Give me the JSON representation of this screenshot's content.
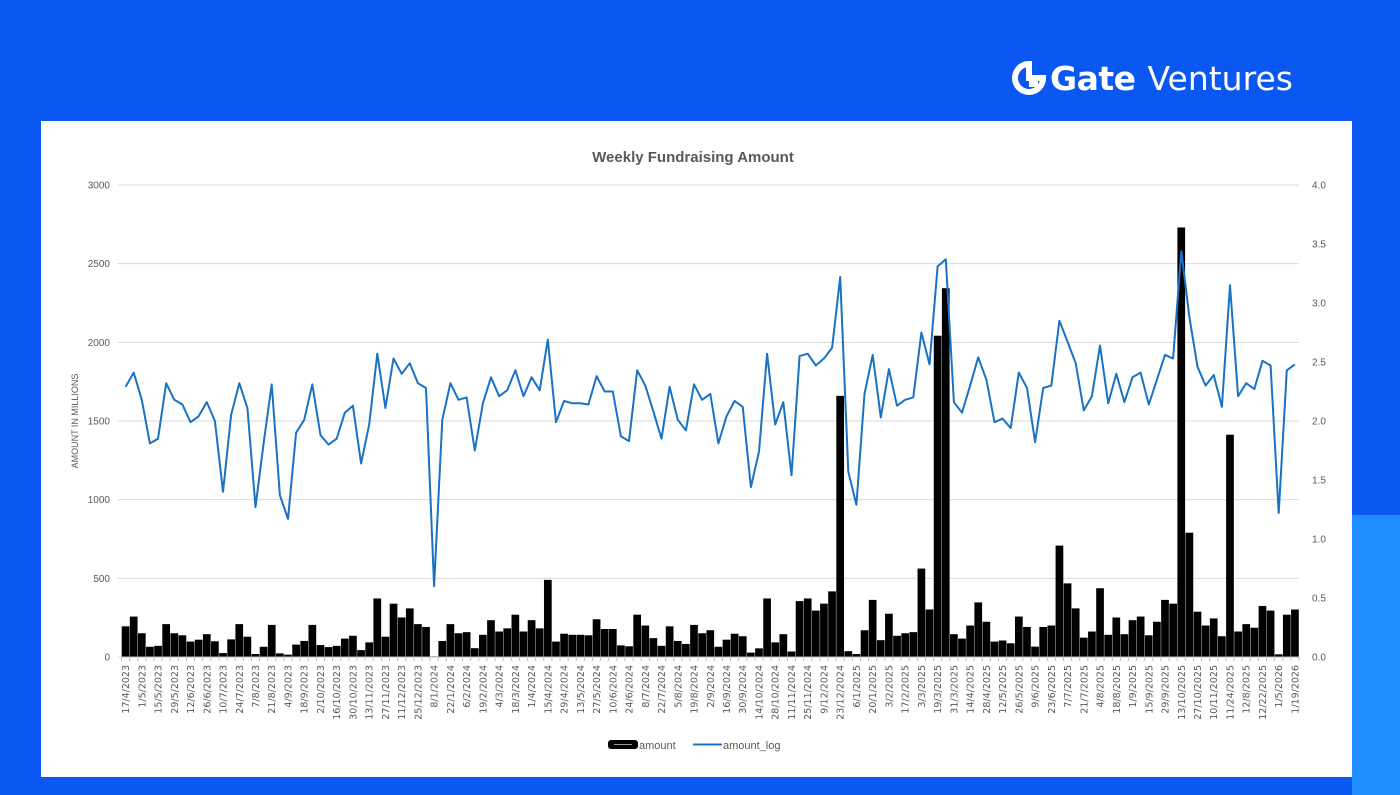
{
  "brand": {
    "name_bold": "Gate",
    "name_light": "Ventures"
  },
  "colors": {
    "background": "#0b57f2",
    "bar": "#000000",
    "line": "#1a72c4",
    "text": "#595959"
  },
  "chart_data": {
    "type": "bar+line",
    "title": "Weekly Fundraising Amount",
    "ylabel": "AMOUNT IN MILLIONS",
    "y2label": "",
    "ylim": [
      0,
      3000
    ],
    "y2lim": [
      0,
      4.0
    ],
    "yticks": [
      "0",
      "500",
      "1000",
      "1500",
      "2000",
      "2500",
      "3000"
    ],
    "y2ticks": [
      "0.0",
      "0.5",
      "1.0",
      "1.5",
      "2.0",
      "2.5",
      "3.0",
      "3.5",
      "4.0"
    ],
    "grid": true,
    "legend": "bottom",
    "xtick_labels": [
      "17/4/2023",
      "1/5/2023",
      "15/5/2023",
      "29/5/2023",
      "12/6/2023",
      "26/6/2023",
      "10/7/2023",
      "24/7/2023",
      "7/8/2023",
      "21/8/2023",
      "4/9/2023",
      "18/9/2023",
      "2/10/2023",
      "16/10/2023",
      "30/10/2023",
      "13/11/2023",
      "27/11/2023",
      "11/12/2023",
      "25/12/2023",
      "8/1/2024",
      "22/1/2024",
      "6/2/2024",
      "19/2/2024",
      "4/3/2024",
      "18/3/2024",
      "1/4/2024",
      "15/4/2024",
      "29/4/2024",
      "13/5/2024",
      "27/5/2024",
      "10/6/2024",
      "24/6/2024",
      "8/7/2024",
      "22/7/2024",
      "5/8/2024",
      "19/8/2024",
      "2/9/2024",
      "16/9/2024",
      "30/9/2024",
      "14/10/2024",
      "28/10/2024",
      "11/11/2024",
      "25/11/2024",
      "9/12/2024",
      "23/12/2024",
      "6/1/2025",
      "20/1/2025",
      "3/2/2025",
      "17/2/2025",
      "3/3/2025",
      "19/3/2025",
      "31/3/2025",
      "14/4/2025",
      "28/4/2025",
      "12/5/2025",
      "26/5/2025",
      "9/6/2025",
      "23/6/2025",
      "7/7/2025",
      "21/7/2025",
      "4/8/2025",
      "18/8/2025",
      "1/9/2025",
      "15/9/2025",
      "29/9/2025",
      "13/10/2025",
      "27/10/2025",
      "10/11/2025",
      "11/24/2025",
      "12/8/2025",
      "12/22/2025",
      "1/5/2026",
      "1/19/2026"
    ],
    "series": [
      {
        "name": "amount",
        "type": "bar",
        "axis": "left",
        "values": [
          195,
          257,
          151,
          65,
          71,
          209,
          151,
          138,
          98,
          110,
          145,
          100,
          25,
          112,
          209,
          129,
          19,
          65,
          204,
          23,
          15,
          79,
          102,
          204,
          76,
          63,
          71,
          117,
          135,
          44,
          93,
          372,
          129,
          339,
          251,
          309,
          209,
          191,
          4,
          102,
          209,
          151,
          158,
          56,
          141,
          234,
          162,
          182,
          269,
          162,
          234,
          182,
          490,
          98,
          148,
          141,
          141,
          138,
          240,
          178,
          178,
          74,
          68,
          269,
          200,
          120,
          71,
          195,
          102,
          83,
          204,
          151,
          170,
          65,
          110,
          148,
          132,
          28,
          55,
          372,
          93,
          145,
          35,
          355,
          372,
          295,
          339,
          417,
          1660,
          37,
          19,
          170,
          363,
          107,
          275,
          135,
          151,
          158,
          562,
          302,
          2042,
          2344,
          145,
          117,
          200,
          347,
          224,
          98,
          105,
          87,
          257,
          191,
          66,
          191,
          200,
          708,
          468,
          309,
          123,
          162,
          437,
          141,
          251,
          145,
          234,
          257,
          138,
          224,
          363,
          339,
          2730,
          790,
          288,
          200,
          245,
          132,
          1413,
          162,
          209,
          186,
          324,
          295,
          17,
          269,
          302
        ]
      },
      {
        "name": "amount_log",
        "type": "line",
        "axis": "right",
        "values": [
          2.29,
          2.41,
          2.18,
          1.81,
          1.85,
          2.32,
          2.18,
          2.14,
          1.99,
          2.04,
          2.16,
          2.0,
          1.4,
          2.05,
          2.32,
          2.11,
          1.27,
          1.81,
          2.31,
          1.37,
          1.17,
          1.9,
          2.01,
          2.31,
          1.88,
          1.8,
          1.85,
          2.07,
          2.13,
          1.64,
          1.97,
          2.57,
          2.11,
          2.53,
          2.4,
          2.49,
          2.32,
          2.28,
          0.6,
          2.01,
          2.32,
          2.18,
          2.2,
          1.75,
          2.15,
          2.37,
          2.21,
          2.26,
          2.43,
          2.21,
          2.37,
          2.26,
          2.69,
          1.99,
          2.17,
          2.15,
          2.15,
          2.14,
          2.38,
          2.25,
          2.25,
          1.87,
          1.83,
          2.43,
          2.3,
          2.08,
          1.85,
          2.29,
          2.01,
          1.92,
          2.31,
          2.18,
          2.23,
          1.81,
          2.04,
          2.17,
          2.12,
          1.44,
          1.74,
          2.57,
          1.97,
          2.16,
          1.54,
          2.55,
          2.57,
          2.47,
          2.53,
          2.62,
          3.22,
          1.57,
          1.29,
          2.23,
          2.56,
          2.03,
          2.44,
          2.13,
          2.18,
          2.2,
          2.75,
          2.48,
          3.31,
          3.37,
          2.16,
          2.07,
          2.3,
          2.54,
          2.35,
          1.99,
          2.02,
          1.94,
          2.41,
          2.28,
          1.82,
          2.28,
          2.3,
          2.85,
          2.67,
          2.49,
          2.09,
          2.21,
          2.64,
          2.15,
          2.4,
          2.16,
          2.37,
          2.41,
          2.14,
          2.35,
          2.56,
          2.53,
          3.44,
          2.88,
          2.46,
          2.3,
          2.39,
          2.12,
          3.15,
          2.21,
          2.32,
          2.27,
          2.51,
          2.47,
          1.22,
          2.43,
          2.48
        ]
      }
    ]
  }
}
